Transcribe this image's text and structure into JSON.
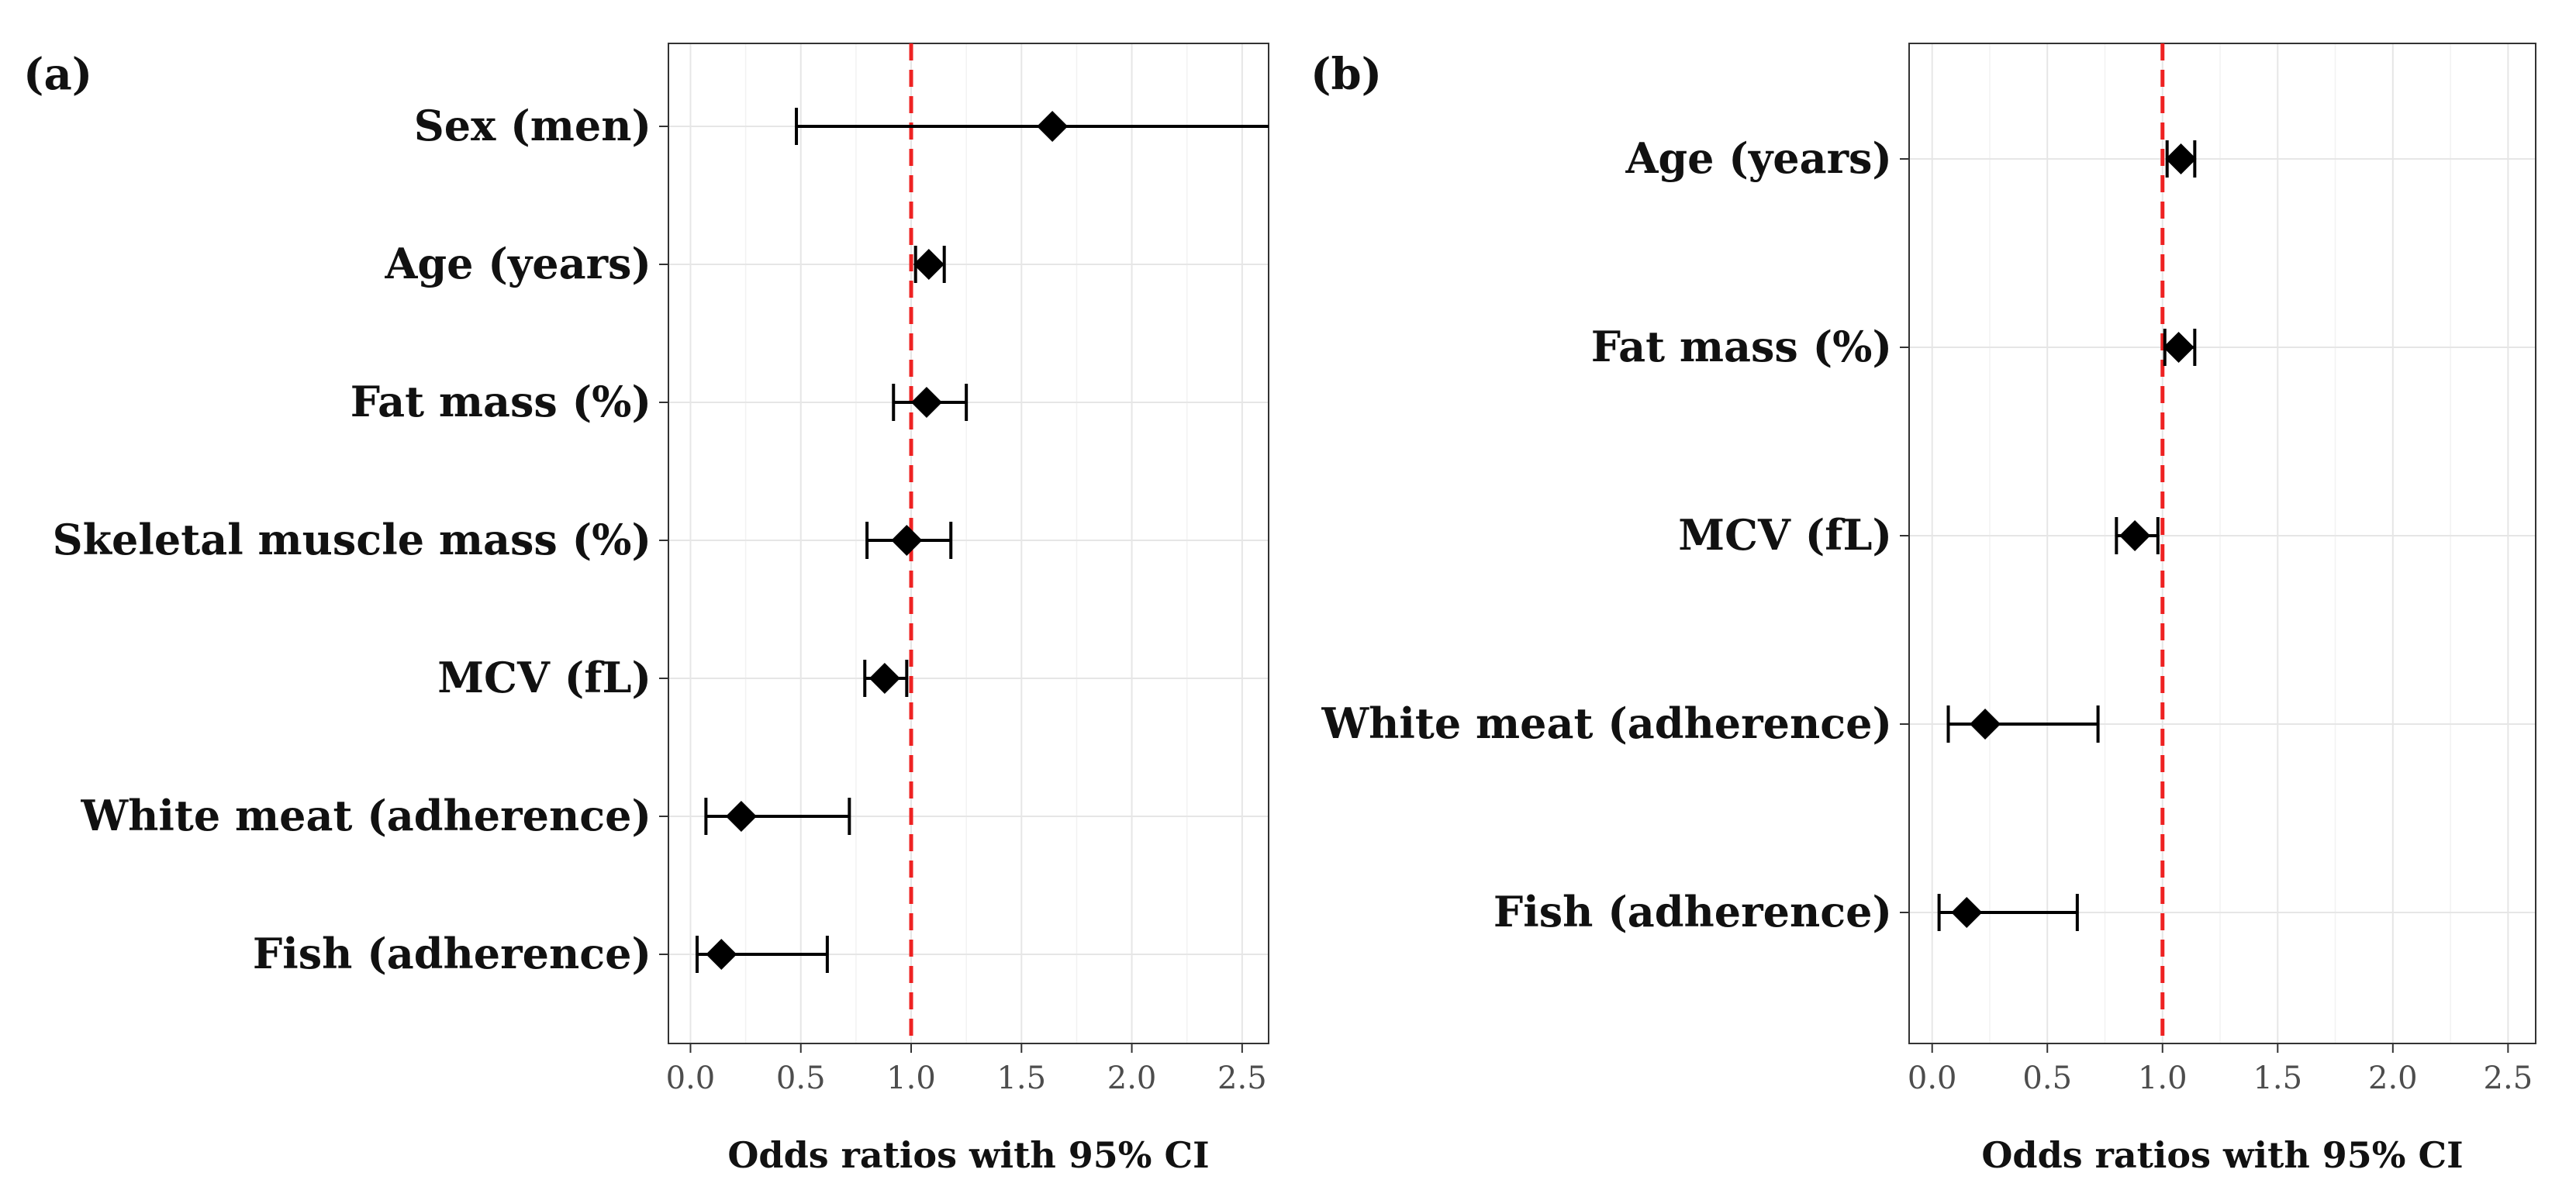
{
  "colors": {
    "reference_line": "#ee2222",
    "marker": "#000000"
  },
  "chart_data": [
    {
      "type": "scatter",
      "panel_label": "(a)",
      "xlabel": "Odds ratios with 95% CI",
      "xlim": [
        -0.1,
        2.62
      ],
      "xticks": [
        0.0,
        0.5,
        1.0,
        1.5,
        2.0,
        2.5
      ],
      "xtick_labels": [
        "0.0",
        "0.5",
        "1.0",
        "1.5",
        "2.0",
        "2.5"
      ],
      "reference_line": 1.0,
      "grid": true,
      "categories": [
        "Sex (men)",
        "Age (years)",
        "Fat mass (%)",
        "Skeletal muscle mass (%)",
        "MCV (fL)",
        "White meat (adherence)",
        "Fish (adherence)"
      ],
      "estimates": [
        1.64,
        1.08,
        1.07,
        0.98,
        0.88,
        0.23,
        0.14
      ],
      "ci_low": [
        0.48,
        1.02,
        0.92,
        0.8,
        0.79,
        0.07,
        0.03
      ],
      "ci_high": [
        2.62,
        1.15,
        1.25,
        1.18,
        0.98,
        0.72,
        0.62
      ]
    },
    {
      "type": "scatter",
      "panel_label": "(b)",
      "xlabel": "Odds ratios with 95% CI",
      "xlim": [
        -0.1,
        2.62
      ],
      "xticks": [
        0.0,
        0.5,
        1.0,
        1.5,
        2.0,
        2.5
      ],
      "xtick_labels": [
        "0.0",
        "0.5",
        "1.0",
        "1.5",
        "2.0",
        "2.5"
      ],
      "reference_line": 1.0,
      "grid": true,
      "categories": [
        "Age (years)",
        "Fat mass (%)",
        "MCV (fL)",
        "White meat (adherence)",
        "Fish (adherence)"
      ],
      "estimates": [
        1.08,
        1.07,
        0.88,
        0.23,
        0.15
      ],
      "ci_low": [
        1.02,
        1.01,
        0.8,
        0.07,
        0.03
      ],
      "ci_high": [
        1.14,
        1.14,
        0.98,
        0.72,
        0.63
      ]
    }
  ]
}
